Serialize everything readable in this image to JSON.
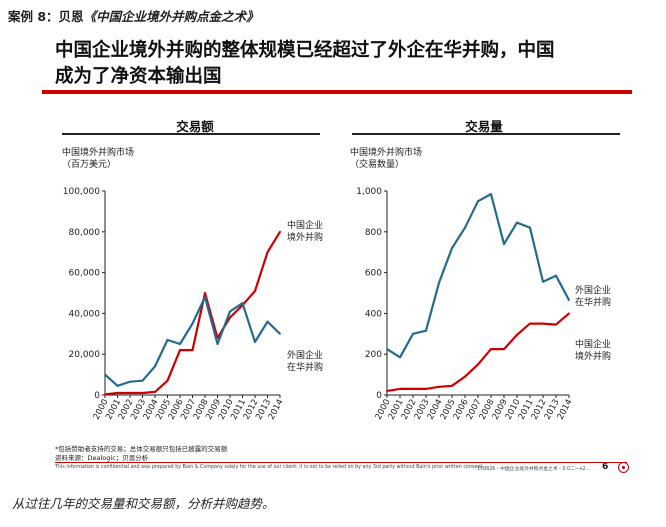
{
  "header": {
    "case_label": "案例 8：贝恩",
    "book_title": "《中国企业境外并购点金之术》"
  },
  "slide": {
    "headline_line1": "中国企业境外并购的整体规模已经超过了外企在华并购，中国",
    "headline_line2": "成为了净资本输出国",
    "page_number": "6",
    "footnote_line1": "*包括赞助者支持的交易；总体交易额只包括已披露的交易额",
    "footnote_line2": "资料来源：Dealogic；贝恩分析",
    "disclaimer": "This information is confidential and was prepared by Bain & Company solely for the use of our client; it is not to be relied on by any 3rd party without Bain's prior written consent.",
    "slide_code": "150826 - 中国企业境外并购点金之术 - 0.0二一v2…",
    "logo_icon": "bain-logo-icon",
    "accent_color": "#cc0000",
    "colors": {
      "outbound": "#cc0000",
      "inbound": "#236b8e"
    }
  },
  "caption": "从过往几年的交易量和交易额，分析并购趋势。",
  "chart_data": [
    {
      "type": "line",
      "title": "交易额",
      "ylabel_line1": "中国境外并购市场",
      "ylabel_line2": "（百万美元）",
      "ylim": [
        0,
        100000
      ],
      "yticks": [
        "0",
        "20,000",
        "40,000",
        "60,000",
        "80,000",
        "100,000"
      ],
      "x": [
        "2000",
        "2001",
        "2002",
        "2003",
        "2004",
        "2005",
        "2006",
        "2007",
        "2008",
        "2009",
        "2010",
        "2011",
        "2012",
        "2013",
        "2014"
      ],
      "grid": false,
      "series": [
        {
          "name_line1": "中国企业",
          "name_line2": "境外并购",
          "color": "#cc0000",
          "values": [
            300,
            1000,
            1000,
            1000,
            1500,
            7000,
            22000,
            22000,
            50000,
            28000,
            38000,
            44000,
            51000,
            70000,
            80000
          ]
        },
        {
          "name_line1": "外国企业",
          "name_line2": "在华并购",
          "color": "#236b8e",
          "values": [
            10000,
            4500,
            6500,
            7000,
            14000,
            27000,
            25000,
            35000,
            48000,
            25000,
            41000,
            45000,
            26000,
            36000,
            30000
          ]
        }
      ]
    },
    {
      "type": "line",
      "title": "交易量",
      "ylabel_line1": "中国境外并购市场",
      "ylabel_line2": "（交易数量）",
      "ylim": [
        0,
        1000
      ],
      "yticks": [
        "0",
        "200",
        "400",
        "600",
        "800",
        "1,000"
      ],
      "x": [
        "2000",
        "2001",
        "2002",
        "2003",
        "2004",
        "2005",
        "2006",
        "2007",
        "2008",
        "2009",
        "2010",
        "2011",
        "2012",
        "2013",
        "2014"
      ],
      "grid": false,
      "series": [
        {
          "name_line1": "外国企业",
          "name_line2": "在华并购",
          "color": "#236b8e",
          "values": [
            225,
            185,
            300,
            315,
            550,
            720,
            820,
            950,
            985,
            740,
            845,
            820,
            555,
            585,
            465
          ]
        },
        {
          "name_line1": "中国企业",
          "name_line2": "境外并购",
          "color": "#cc0000",
          "values": [
            20,
            30,
            30,
            30,
            40,
            45,
            90,
            150,
            225,
            225,
            295,
            350,
            350,
            345,
            400
          ]
        }
      ]
    }
  ]
}
